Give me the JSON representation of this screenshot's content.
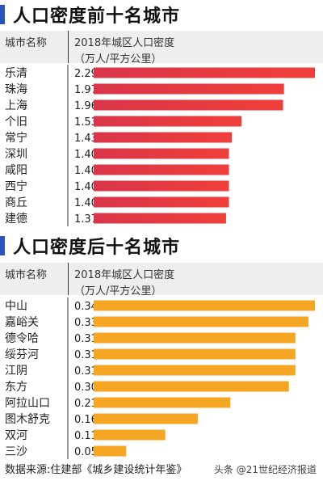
{
  "top_section": {
    "title": "人口密度前十名城市",
    "col_city": "城市名称",
    "col_value_line1": "2018年城区人口密度",
    "col_value_line2": "（万人/平方公里）"
  },
  "bottom_section": {
    "title": "人口密度后十名城市",
    "col_city": "城市名称",
    "col_value_line1": "2018年城区人口密度",
    "col_value_line2": "（万人/平方公里）"
  },
  "source": "数据来源:住建部《城乡建设统计年鉴》",
  "watermark": "头条 @21世纪经济报道",
  "colors": {
    "title_bar": "#2a55b8",
    "top_bar": "#e8413f",
    "bottom_bar": "#f5a623",
    "header_bg": "#eeeeee"
  },
  "chart_data": [
    {
      "type": "bar",
      "categories": [
        "乐清",
        "珠海",
        "上海",
        "个旧",
        "常宁",
        "深圳",
        "咸阳",
        "西宁",
        "商丘",
        "建德"
      ],
      "values": [
        2.29,
        1.97,
        1.96,
        1.53,
        1.43,
        1.4,
        1.4,
        1.4,
        1.4,
        1.37
      ],
      "value_labels": [
        "2.29",
        "1.97",
        "1.96",
        "1.53",
        "1.43",
        "1.40",
        "1.40",
        "1.40",
        "1.40",
        "1.37"
      ],
      "title": "人口密度前十名城市",
      "orientation": "horizontal",
      "color": "#e8413f"
    },
    {
      "type": "bar",
      "categories": [
        "中山",
        "嘉峪关",
        "德令哈",
        "绥芬河",
        "江阴",
        "东方",
        "阿拉山口",
        "图木舒克",
        "双河",
        "三沙"
      ],
      "values": [
        0.34,
        0.33,
        0.31,
        0.31,
        0.31,
        0.3,
        0.21,
        0.16,
        0.11,
        0.05
      ],
      "value_labels": [
        "0.34",
        "0.33",
        "0.31",
        "0.31",
        "0.31",
        "0.30",
        "0.21",
        "0.16",
        "0.11",
        "0.05"
      ],
      "title": "人口密度后十名城市",
      "orientation": "horizontal",
      "color": "#f5a623"
    }
  ]
}
